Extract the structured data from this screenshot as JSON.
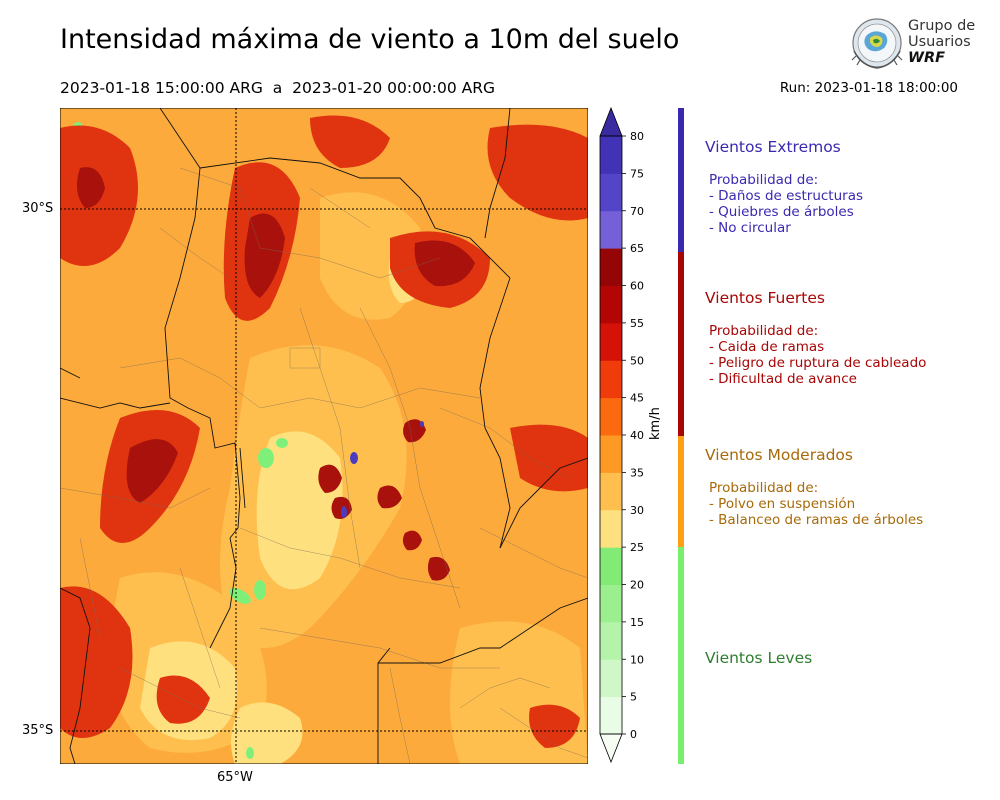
{
  "title": "Intensidad máxima de viento a 10m del suelo",
  "period": "2023-01-18 15:00:00 ARG  a  2023-01-20 00:00:00 ARG",
  "run": "Run: 2023-01-18 18:00:00",
  "logo": {
    "text_line1": "Grupo de",
    "text_line2": "Usuarios",
    "text_line3": "WRF"
  },
  "map": {
    "lat_labels": [
      "30°S",
      "35°S"
    ],
    "lon_labels": [
      "65°W"
    ],
    "variable": "max 10 m wind speed",
    "colors": {
      "low_green": "#7ef07a",
      "yellow": "#fee17e",
      "orange": "#fdaa3c",
      "red": "#e03410",
      "dark_red": "#a8110c",
      "purple": "#4b3bbf"
    }
  },
  "colorbar": {
    "units": "km/h",
    "ticks": [
      "0",
      "5",
      "10",
      "15",
      "20",
      "25",
      "30",
      "35",
      "40",
      "45",
      "50",
      "55",
      "60",
      "65",
      "70",
      "75",
      "80"
    ],
    "bin_colors": [
      "#e9fce5",
      "#d0f7c8",
      "#b6f3aa",
      "#9cef8f",
      "#82eb75",
      "#fee17e",
      "#febf4e",
      "#fd9a26",
      "#fc6a10",
      "#f03c0a",
      "#d41208",
      "#b40505",
      "#960505",
      "#7560d8",
      "#5344c8",
      "#4232b5",
      "#3a2aa0"
    ]
  },
  "legend": [
    {
      "title": "Vientos Extremos",
      "color": "#3a28b0",
      "lines": [
        "Probabilidad de:",
        "- Daños de estructuras",
        "- Quiebres de árboles",
        "- No circular"
      ]
    },
    {
      "title": "Vientos Fuertes",
      "color": "#a80505",
      "lines": [
        "Probabilidad de:",
        "- Caida de ramas",
        "- Peligro de ruptura de cableado",
        "- Dificultad de avance"
      ]
    },
    {
      "title": "Vientos Moderados",
      "color": "#a76a0a",
      "bar_color": "#ff9f14",
      "lines": [
        "Probabilidad de:",
        "- Polvo en suspensión",
        "- Balanceo de ramas de árboles"
      ]
    },
    {
      "title": "Vientos Leves",
      "color": "#2f7d2f",
      "bar_color": "#78f06e",
      "lines": []
    }
  ]
}
